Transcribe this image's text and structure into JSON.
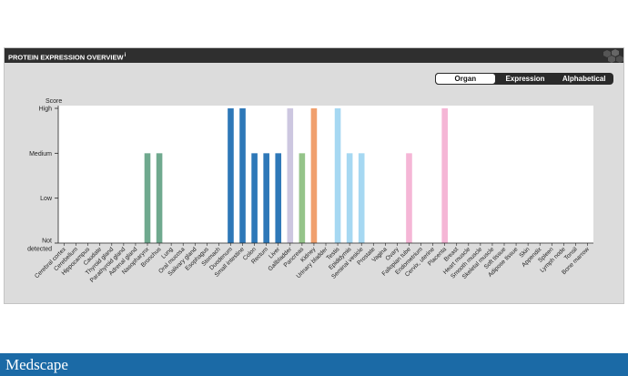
{
  "header": {
    "title": "PROTEIN EXPRESSION OVERVIEW",
    "info_mark": "i"
  },
  "toggle": {
    "options": [
      "Organ",
      "Expression",
      "Alphabetical"
    ],
    "active": "Organ"
  },
  "footer": {
    "logo": "Medscape"
  },
  "colors": {
    "panel_bg": "#dcdcdc",
    "header_bg": "#2f2f2f",
    "footer_bg": "#1b6aa6"
  },
  "chart_data": {
    "type": "bar",
    "ylabel": "Score",
    "yticks": [
      "Not detected",
      "Low",
      "Medium",
      "High"
    ],
    "ylim": [
      0,
      3
    ],
    "grid": false,
    "categories": [
      "Cerebral cortex",
      "Cerebellum",
      "Hippocampus",
      "Caudate",
      "Thyroid gland",
      "Parathyroid gland",
      "Adrenal gland",
      "Nasopharynx",
      "Bronchus",
      "Lung",
      "Oral mucosa",
      "Salivary gland",
      "Esophagus",
      "Stomach",
      "Duodenum",
      "Small intestine",
      "Colon",
      "Rectum",
      "Liver",
      "Gallbladder",
      "Pancreas",
      "Kidney",
      "Urinary bladder",
      "Testis",
      "Epididymis",
      "Seminal vesicle",
      "Prostate",
      "Vagina",
      "Ovary",
      "Fallopian tube",
      "Endometrium",
      "Cervix, uterine",
      "Placenta",
      "Breast",
      "Heart muscle",
      "Smooth muscle",
      "Skeletal muscle",
      "Soft tissue",
      "Adipose tissue",
      "Skin",
      "Appendix",
      "Spleen",
      "Lymph node",
      "Tonsil",
      "Bone marrow"
    ],
    "values": [
      0,
      0,
      0,
      0,
      0,
      0,
      0,
      2,
      2,
      0,
      0,
      0,
      0,
      0,
      3,
      3,
      2,
      2,
      2,
      3,
      2,
      3,
      0,
      3,
      2,
      2,
      0,
      0,
      0,
      2,
      0,
      0,
      3,
      0,
      0,
      0,
      0,
      0,
      0,
      0,
      0,
      0,
      0,
      0,
      0
    ],
    "bar_colors": [
      "#7ab3a3",
      "#7ab3a3",
      "#7ab3a3",
      "#7ab3a3",
      "#7ab3a3",
      "#7ab3a3",
      "#7ab3a3",
      "#6fa98e",
      "#6fa98e",
      "#6fa98e",
      "#2e78b8",
      "#2e78b8",
      "#2e78b8",
      "#2e78b8",
      "#2e78b8",
      "#2e78b8",
      "#2e78b8",
      "#2e78b8",
      "#2e78b8",
      "#cdc7e0",
      "#95c48a",
      "#f0a06e",
      "#f0a06e",
      "#a6d8f2",
      "#a6d8f2",
      "#a6d8f2",
      "#a6d8f2",
      "#f5b6d6",
      "#f5b6d6",
      "#f5b6d6",
      "#f5b6d6",
      "#f5b6d6",
      "#f5b6d6",
      "#f5b6d6",
      "#cccccc",
      "#cccccc",
      "#cccccc",
      "#cccccc",
      "#cccccc",
      "#cccccc",
      "#cccccc",
      "#cccccc",
      "#cccccc",
      "#cccccc",
      "#cccccc"
    ]
  }
}
